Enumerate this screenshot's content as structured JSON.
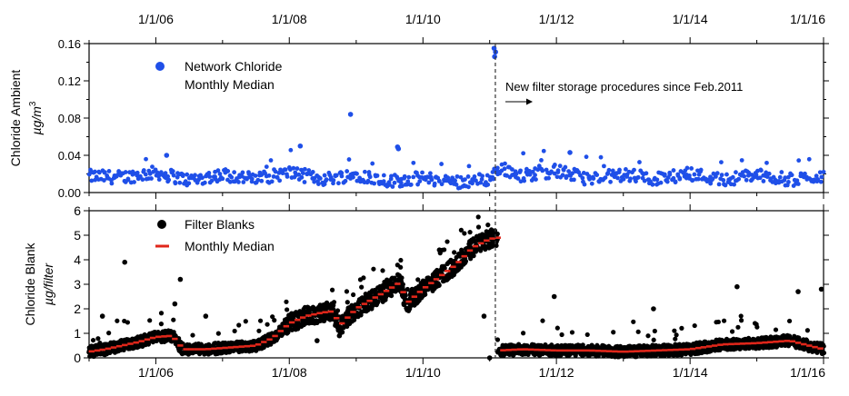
{
  "chart_data": [
    {
      "type": "scatter",
      "ylabel": "Chloride Ambient",
      "ylabel_unit": "µg/m",
      "ylabel_unit_sup": "3",
      "xlim": [
        "2005-01-01",
        "2016-01-01"
      ],
      "ylim": [
        0,
        0.16
      ],
      "x_tick_labels": [
        "1/1/06",
        "1/1/08",
        "1/1/10",
        "1/1/12",
        "1/1/14",
        "1/1/16"
      ],
      "y_ticks": [
        "0.00",
        "0.04",
        "0.08",
        "0.12",
        "0.16"
      ],
      "legend_placement": "top-left",
      "legend": [
        "Network Chloride",
        "Monthly Median"
      ],
      "annotation": "New filter storage procedures since Feb.2011",
      "series": [
        {
          "color": "#1f4fe8",
          "marker": "dot",
          "baseline_points": [
            [
              "2005-01-01",
              0.016
            ],
            [
              "2005-07-01",
              0.015
            ],
            [
              "2006-01-01",
              0.02
            ],
            [
              "2006-07-01",
              0.012
            ],
            [
              "2007-01-01",
              0.018
            ],
            [
              "2007-07-01",
              0.013
            ],
            [
              "2008-01-01",
              0.02
            ],
            [
              "2008-07-01",
              0.013
            ],
            [
              "2009-01-01",
              0.018
            ],
            [
              "2009-07-01",
              0.011
            ],
            [
              "2010-01-01",
              0.014
            ],
            [
              "2010-07-01",
              0.01
            ],
            [
              "2011-01-01",
              0.013
            ],
            [
              "2011-03-01",
              0.025
            ],
            [
              "2011-07-01",
              0.017
            ],
            [
              "2012-01-01",
              0.022
            ],
            [
              "2012-07-01",
              0.013
            ],
            [
              "2013-01-01",
              0.018
            ],
            [
              "2013-07-01",
              0.013
            ],
            [
              "2014-01-01",
              0.019
            ],
            [
              "2014-07-01",
              0.012
            ],
            [
              "2015-01-01",
              0.018
            ],
            [
              "2015-07-01",
              0.012
            ],
            [
              "2016-01-01",
              0.017
            ]
          ],
          "outliers": [
            [
              "2008-12-01",
              0.084
            ],
            [
              "2009-08-15",
              0.049
            ],
            [
              "2009-08-20",
              0.047
            ],
            [
              "2011-01-25",
              0.155
            ],
            [
              "2011-01-28",
              0.146
            ],
            [
              "2011-02-02",
              0.151
            ],
            [
              "2008-03-01",
              0.05
            ],
            [
              "2006-03-01",
              0.04
            ],
            [
              "2012-03-15",
              0.043
            ]
          ]
        }
      ]
    },
    {
      "type": "scatter",
      "ylabel": "Chloride Blank",
      "ylabel_unit": "µg/filter",
      "xlim": [
        "2005-01-01",
        "2016-01-01"
      ],
      "ylim": [
        0,
        6
      ],
      "x_tick_labels": [
        "1/1/06",
        "1/1/08",
        "1/1/10",
        "1/1/12",
        "1/1/14",
        "1/1/16"
      ],
      "y_ticks": [
        "0",
        "1",
        "2",
        "3",
        "4",
        "5",
        "6"
      ],
      "legend_placement": "top-left",
      "series": [
        {
          "name": "Filter Blanks",
          "color": "#000000",
          "marker": "dot",
          "outliers": [
            [
              "2005-07-15",
              3.9
            ],
            [
              "2006-05-15",
              3.2
            ],
            [
              "2006-04-15",
              2.2
            ],
            [
              "2008-06-01",
              0.7
            ],
            [
              "2008-10-01",
              0.9
            ],
            [
              "2010-04-01",
              4.4
            ],
            [
              "2010-12-01",
              1.7
            ],
            [
              "2011-01-01",
              0.0
            ],
            [
              "2011-12-20",
              2.5
            ],
            [
              "2013-06-15",
              2.0
            ],
            [
              "2014-09-15",
              2.9
            ],
            [
              "2015-08-15",
              2.7
            ],
            [
              "2015-12-20",
              2.8
            ],
            [
              "2005-03-15",
              1.7
            ],
            [
              "2006-10-01",
              1.7
            ]
          ]
        },
        {
          "name": "Monthly Median",
          "color": "#e0261a",
          "marker": "dash",
          "points": [
            [
              "2005-01-01",
              0.25
            ],
            [
              "2005-04-01",
              0.35
            ],
            [
              "2005-07-01",
              0.5
            ],
            [
              "2005-10-01",
              0.65
            ],
            [
              "2006-01-01",
              0.85
            ],
            [
              "2006-04-01",
              0.9
            ],
            [
              "2006-06-01",
              0.35
            ],
            [
              "2006-10-01",
              0.35
            ],
            [
              "2007-01-01",
              0.4
            ],
            [
              "2007-04-01",
              0.45
            ],
            [
              "2007-07-01",
              0.5
            ],
            [
              "2007-10-01",
              0.8
            ],
            [
              "2008-01-01",
              1.4
            ],
            [
              "2008-04-01",
              1.7
            ],
            [
              "2008-07-01",
              1.85
            ],
            [
              "2008-09-01",
              1.9
            ],
            [
              "2008-10-01",
              1.3
            ],
            [
              "2009-01-01",
              2.0
            ],
            [
              "2009-04-01",
              2.4
            ],
            [
              "2009-07-01",
              2.8
            ],
            [
              "2009-09-01",
              3.1
            ],
            [
              "2009-10-01",
              2.2
            ],
            [
              "2010-01-01",
              2.8
            ],
            [
              "2010-04-01",
              3.3
            ],
            [
              "2010-07-01",
              3.8
            ],
            [
              "2010-10-01",
              4.5
            ],
            [
              "2011-01-01",
              4.85
            ],
            [
              "2011-02-15",
              4.9
            ],
            [
              "2011-02-16",
              0.3
            ],
            [
              "2011-07-01",
              0.35
            ],
            [
              "2012-01-01",
              0.3
            ],
            [
              "2012-07-01",
              0.3
            ],
            [
              "2013-01-01",
              0.25
            ],
            [
              "2013-07-01",
              0.3
            ],
            [
              "2014-01-01",
              0.35
            ],
            [
              "2014-07-01",
              0.55
            ],
            [
              "2015-01-01",
              0.6
            ],
            [
              "2015-07-01",
              0.7
            ],
            [
              "2016-01-01",
              0.35
            ]
          ]
        }
      ]
    }
  ]
}
